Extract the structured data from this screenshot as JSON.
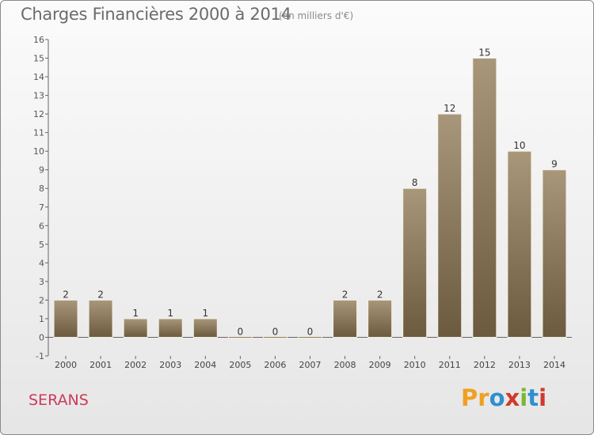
{
  "header": {
    "title": "Charges Financières 2000 à 2014",
    "subtitle": "(en milliers d'€)"
  },
  "footer": {
    "commune": "SERANS",
    "logo_letters": [
      "P",
      "r",
      "o",
      "x",
      "i",
      "t",
      "i"
    ]
  },
  "colors": {
    "bar_top": "#a8977a",
    "bar_bottom": "#6b5a3e",
    "commune_text": "#cc3a5a",
    "logo_letters": [
      "#f0a020",
      "#f0a020",
      "#2f8fd0",
      "#d03a2a",
      "#7ab830",
      "#2f8fd0",
      "#d03a2a"
    ]
  },
  "chart_data": {
    "type": "bar",
    "title": "Charges Financières 2000 à 2014",
    "subtitle": "(en milliers d'€)",
    "categories": [
      "2000",
      "2001",
      "2002",
      "2003",
      "2004",
      "2005",
      "2006",
      "2007",
      "2008",
      "2009",
      "2010",
      "2011",
      "2012",
      "2013",
      "2014"
    ],
    "values": [
      2,
      2,
      1,
      1,
      1,
      0,
      0,
      0,
      2,
      2,
      8,
      12,
      15,
      10,
      9
    ],
    "ylim": [
      -1,
      16
    ],
    "yticks": [
      -1,
      0,
      1,
      2,
      3,
      4,
      5,
      6,
      7,
      8,
      9,
      10,
      11,
      12,
      13,
      14,
      15,
      16
    ],
    "grid": false,
    "data_labels": true
  }
}
